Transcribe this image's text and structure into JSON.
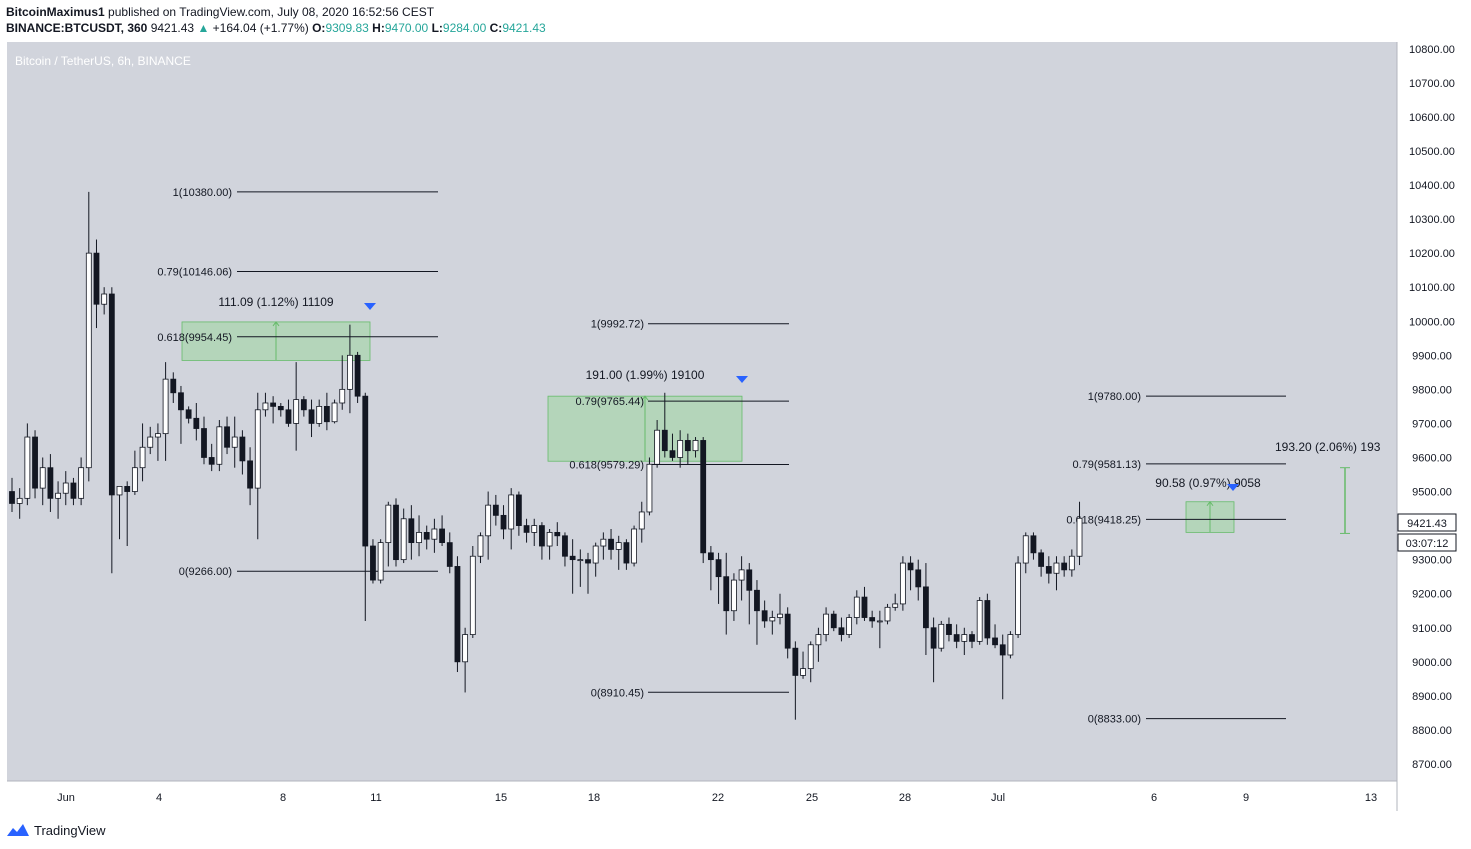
{
  "header": {
    "author": "BitcoinMaximus1",
    "published": "published on TradingView.com, July 08, 2020 16:52:56 CEST",
    "symbol": "BINANCE:BTCUSDT, 360",
    "last": "9421.43",
    "change": "+164.04 (+1.77%)",
    "o_label": "O:",
    "o": "9309.83",
    "h_label": "H:",
    "h": "9470.00",
    "l_label": "L:",
    "l": "9284.00",
    "c_label": "C:",
    "c": "9421.43"
  },
  "footer": {
    "brand": "TradingView"
  },
  "colors": {
    "pane_bg": "#d1d4dc",
    "up_body": "#ffffff",
    "down_body": "#131722",
    "zone": "#a5d6a7",
    "zone_edge": "#66bb6a",
    "marker": "#2962ff",
    "text": "#131722"
  },
  "chart_data": {
    "type": "candlestick",
    "title": "Bitcoin / TetherUS, 6h, BINANCE",
    "ylim": [
      8650,
      10820
    ],
    "y_ticks": [
      "10800.00",
      "10700.00",
      "10600.00",
      "10500.00",
      "10400.00",
      "10300.00",
      "10200.00",
      "10100.00",
      "10000.00",
      "9900.00",
      "9800.00",
      "9700.00",
      "9600.00",
      "9500.00",
      "9400.00",
      "9300.00",
      "9200.00",
      "9100.00",
      "9000.00",
      "8900.00",
      "8800.00",
      "8700.00"
    ],
    "x_ticks": [
      "Jun",
      "4",
      "8",
      "11",
      "15",
      "18",
      "22",
      "25",
      "28",
      "Jul",
      "6",
      "9",
      "13"
    ],
    "last_price_label": "9421.43",
    "countdown_label": "03:07:12",
    "fib_sets": [
      {
        "levels": [
          {
            "label": "1(10380.00)",
            "value": 10380.0
          },
          {
            "label": "0.79(10146.06)",
            "value": 10146.06
          },
          {
            "label": "0.618(9954.45)",
            "value": 9954.45
          },
          {
            "label": "0(9266.00)",
            "value": 9266.0
          }
        ],
        "zone": {
          "top": 9998,
          "bottom": 9885
        },
        "measure": "111.09 (1.12%) 11109"
      },
      {
        "levels": [
          {
            "label": "1(9992.72)",
            "value": 9992.72
          },
          {
            "label": "0.79(9765.44)",
            "value": 9765.44
          },
          {
            "label": "0.618(9579.29)",
            "value": 9579.29
          },
          {
            "label": "0(8910.45)",
            "value": 8910.45
          }
        ],
        "zone": {
          "top": 9780,
          "bottom": 9589
        },
        "measure": "191.00 (1.99%) 19100"
      },
      {
        "levels": [
          {
            "label": "1(9780.00)",
            "value": 9780.0
          },
          {
            "label": "0.79(9581.13)",
            "value": 9581.13
          },
          {
            "label": "0.618(9418.25)",
            "value": 9418.25
          },
          {
            "label": "0(8833.00)",
            "value": 8833.0
          }
        ],
        "zone": {
          "top": 9470,
          "bottom": 9380
        },
        "measure": "90.58 (0.97%) 9058"
      }
    ],
    "projection": {
      "label": "193.20 (2.06%) 193",
      "top": 9570,
      "bottom": 9377
    },
    "candles": [
      [
        9500,
        9540,
        9440,
        9465
      ],
      [
        9465,
        9510,
        9420,
        9480
      ],
      [
        9480,
        9700,
        9460,
        9660
      ],
      [
        9660,
        9680,
        9480,
        9510
      ],
      [
        9510,
        9600,
        9460,
        9570
      ],
      [
        9570,
        9610,
        9440,
        9480
      ],
      [
        9480,
        9530,
        9420,
        9495
      ],
      [
        9495,
        9560,
        9460,
        9525
      ],
      [
        9525,
        9540,
        9460,
        9480
      ],
      [
        9480,
        9600,
        9460,
        9570
      ],
      [
        9570,
        10380,
        9530,
        10200
      ],
      [
        10200,
        10240,
        9980,
        10050
      ],
      [
        10050,
        10100,
        10020,
        10080
      ],
      [
        10080,
        10100,
        9260,
        9490
      ],
      [
        9490,
        9510,
        9360,
        9515
      ],
      [
        9515,
        9530,
        9340,
        9500
      ],
      [
        9500,
        9620,
        9490,
        9570
      ],
      [
        9570,
        9700,
        9530,
        9630
      ],
      [
        9630,
        9690,
        9610,
        9660
      ],
      [
        9660,
        9700,
        9590,
        9670
      ],
      [
        9670,
        9880,
        9590,
        9830
      ],
      [
        9830,
        9850,
        9760,
        9790
      ],
      [
        9790,
        9810,
        9640,
        9740
      ],
      [
        9740,
        9750,
        9700,
        9715
      ],
      [
        9715,
        9760,
        9650,
        9685
      ],
      [
        9685,
        9720,
        9580,
        9600
      ],
      [
        9600,
        9640,
        9560,
        9580
      ],
      [
        9580,
        9710,
        9560,
        9690
      ],
      [
        9690,
        9720,
        9610,
        9630
      ],
      [
        9630,
        9720,
        9570,
        9660
      ],
      [
        9660,
        9680,
        9550,
        9590
      ],
      [
        9590,
        9630,
        9460,
        9510
      ],
      [
        9510,
        9790,
        9360,
        9740
      ],
      [
        9740,
        9790,
        9720,
        9760
      ],
      [
        9760,
        9780,
        9700,
        9750
      ],
      [
        9750,
        9760,
        9720,
        9740
      ],
      [
        9740,
        9770,
        9690,
        9700
      ],
      [
        9700,
        9880,
        9620,
        9770
      ],
      [
        9770,
        9780,
        9720,
        9740
      ],
      [
        9740,
        9770,
        9660,
        9700
      ],
      [
        9700,
        9770,
        9690,
        9750
      ],
      [
        9750,
        9790,
        9680,
        9705
      ],
      [
        9705,
        9770,
        9700,
        9760
      ],
      [
        9760,
        9900,
        9740,
        9800
      ],
      [
        9800,
        9990,
        9730,
        9900
      ],
      [
        9900,
        9910,
        9760,
        9780
      ],
      [
        9780,
        9790,
        9120,
        9340
      ],
      [
        9340,
        9360,
        9230,
        9240
      ],
      [
        9240,
        9360,
        9230,
        9350
      ],
      [
        9350,
        9470,
        9280,
        9460
      ],
      [
        9460,
        9480,
        9280,
        9300
      ],
      [
        9300,
        9450,
        9290,
        9420
      ],
      [
        9420,
        9460,
        9300,
        9350
      ],
      [
        9350,
        9430,
        9310,
        9380
      ],
      [
        9380,
        9400,
        9330,
        9360
      ],
      [
        9360,
        9420,
        9320,
        9390
      ],
      [
        9390,
        9430,
        9340,
        9350
      ],
      [
        9350,
        9380,
        9260,
        9280
      ],
      [
        9280,
        9310,
        8970,
        9000
      ],
      [
        9000,
        9100,
        8910,
        9080
      ],
      [
        9080,
        9340,
        9070,
        9310
      ],
      [
        9310,
        9380,
        9290,
        9370
      ],
      [
        9370,
        9500,
        9300,
        9460
      ],
      [
        9460,
        9490,
        9400,
        9430
      ],
      [
        9430,
        9460,
        9360,
        9390
      ],
      [
        9390,
        9510,
        9330,
        9490
      ],
      [
        9490,
        9500,
        9370,
        9400
      ],
      [
        9400,
        9420,
        9350,
        9380
      ],
      [
        9380,
        9420,
        9340,
        9400
      ],
      [
        9400,
        9410,
        9300,
        9340
      ],
      [
        9340,
        9390,
        9300,
        9380
      ],
      [
        9380,
        9410,
        9340,
        9370
      ],
      [
        9370,
        9380,
        9280,
        9310
      ],
      [
        9310,
        9360,
        9200,
        9300
      ],
      [
        9300,
        9330,
        9220,
        9300
      ],
      [
        9300,
        9320,
        9200,
        9290
      ],
      [
        9290,
        9350,
        9250,
        9340
      ],
      [
        9340,
        9380,
        9300,
        9360
      ],
      [
        9360,
        9390,
        9300,
        9330
      ],
      [
        9330,
        9370,
        9270,
        9350
      ],
      [
        9350,
        9360,
        9270,
        9290
      ],
      [
        9290,
        9400,
        9280,
        9390
      ],
      [
        9390,
        9470,
        9350,
        9440
      ],
      [
        9440,
        9600,
        9430,
        9580
      ],
      [
        9580,
        9710,
        9570,
        9680
      ],
      [
        9680,
        9790,
        9600,
        9620
      ],
      [
        9620,
        9670,
        9590,
        9600
      ],
      [
        9600,
        9680,
        9570,
        9650
      ],
      [
        9650,
        9670,
        9580,
        9620
      ],
      [
        9620,
        9660,
        9600,
        9650
      ],
      [
        9650,
        9660,
        9290,
        9320
      ],
      [
        9320,
        9340,
        9210,
        9300
      ],
      [
        9300,
        9320,
        9170,
        9250
      ],
      [
        9250,
        9320,
        9080,
        9150
      ],
      [
        9150,
        9260,
        9120,
        9240
      ],
      [
        9240,
        9310,
        9180,
        9270
      ],
      [
        9270,
        9290,
        9110,
        9210
      ],
      [
        9210,
        9240,
        9050,
        9150
      ],
      [
        9150,
        9180,
        9100,
        9120
      ],
      [
        9120,
        9150,
        9080,
        9130
      ],
      [
        9130,
        9200,
        9110,
        9140
      ],
      [
        9140,
        9160,
        9010,
        9040
      ],
      [
        9040,
        9060,
        8830,
        8960
      ],
      [
        8960,
        9030,
        8950,
        8980
      ],
      [
        8980,
        9060,
        8940,
        9050
      ],
      [
        9050,
        9100,
        9000,
        9080
      ],
      [
        9080,
        9160,
        9060,
        9140
      ],
      [
        9140,
        9150,
        9090,
        9100
      ],
      [
        9100,
        9130,
        9060,
        9080
      ],
      [
        9080,
        9140,
        9070,
        9130
      ],
      [
        9130,
        9210,
        9110,
        9190
      ],
      [
        9190,
        9220,
        9120,
        9130
      ],
      [
        9130,
        9150,
        9100,
        9120
      ],
      [
        9120,
        9150,
        9040,
        9120
      ],
      [
        9120,
        9170,
        9110,
        9160
      ],
      [
        9160,
        9200,
        9150,
        9170
      ],
      [
        9170,
        9310,
        9150,
        9290
      ],
      [
        9290,
        9310,
        9210,
        9270
      ],
      [
        9270,
        9300,
        9180,
        9220
      ],
      [
        9220,
        9290,
        9020,
        9100
      ],
      [
        9100,
        9130,
        8940,
        9040
      ],
      [
        9040,
        9120,
        9030,
        9110
      ],
      [
        9110,
        9130,
        9060,
        9080
      ],
      [
        9080,
        9110,
        9040,
        9060
      ],
      [
        9060,
        9100,
        9020,
        9080
      ],
      [
        9080,
        9090,
        9040,
        9060
      ],
      [
        9060,
        9190,
        9050,
        9180
      ],
      [
        9180,
        9200,
        9050,
        9070
      ],
      [
        9070,
        9110,
        9040,
        9050
      ],
      [
        9050,
        9080,
        8890,
        9020
      ],
      [
        9020,
        9090,
        9010,
        9080
      ],
      [
        9080,
        9310,
        9070,
        9290
      ],
      [
        9290,
        9380,
        9260,
        9370
      ],
      [
        9370,
        9380,
        9300,
        9320
      ],
      [
        9320,
        9330,
        9250,
        9280
      ],
      [
        9280,
        9310,
        9230,
        9260
      ],
      [
        9260,
        9310,
        9210,
        9290
      ],
      [
        9290,
        9310,
        9250,
        9270
      ],
      [
        9270,
        9330,
        9250,
        9310
      ],
      [
        9310,
        9470,
        9284,
        9421.43
      ]
    ]
  }
}
